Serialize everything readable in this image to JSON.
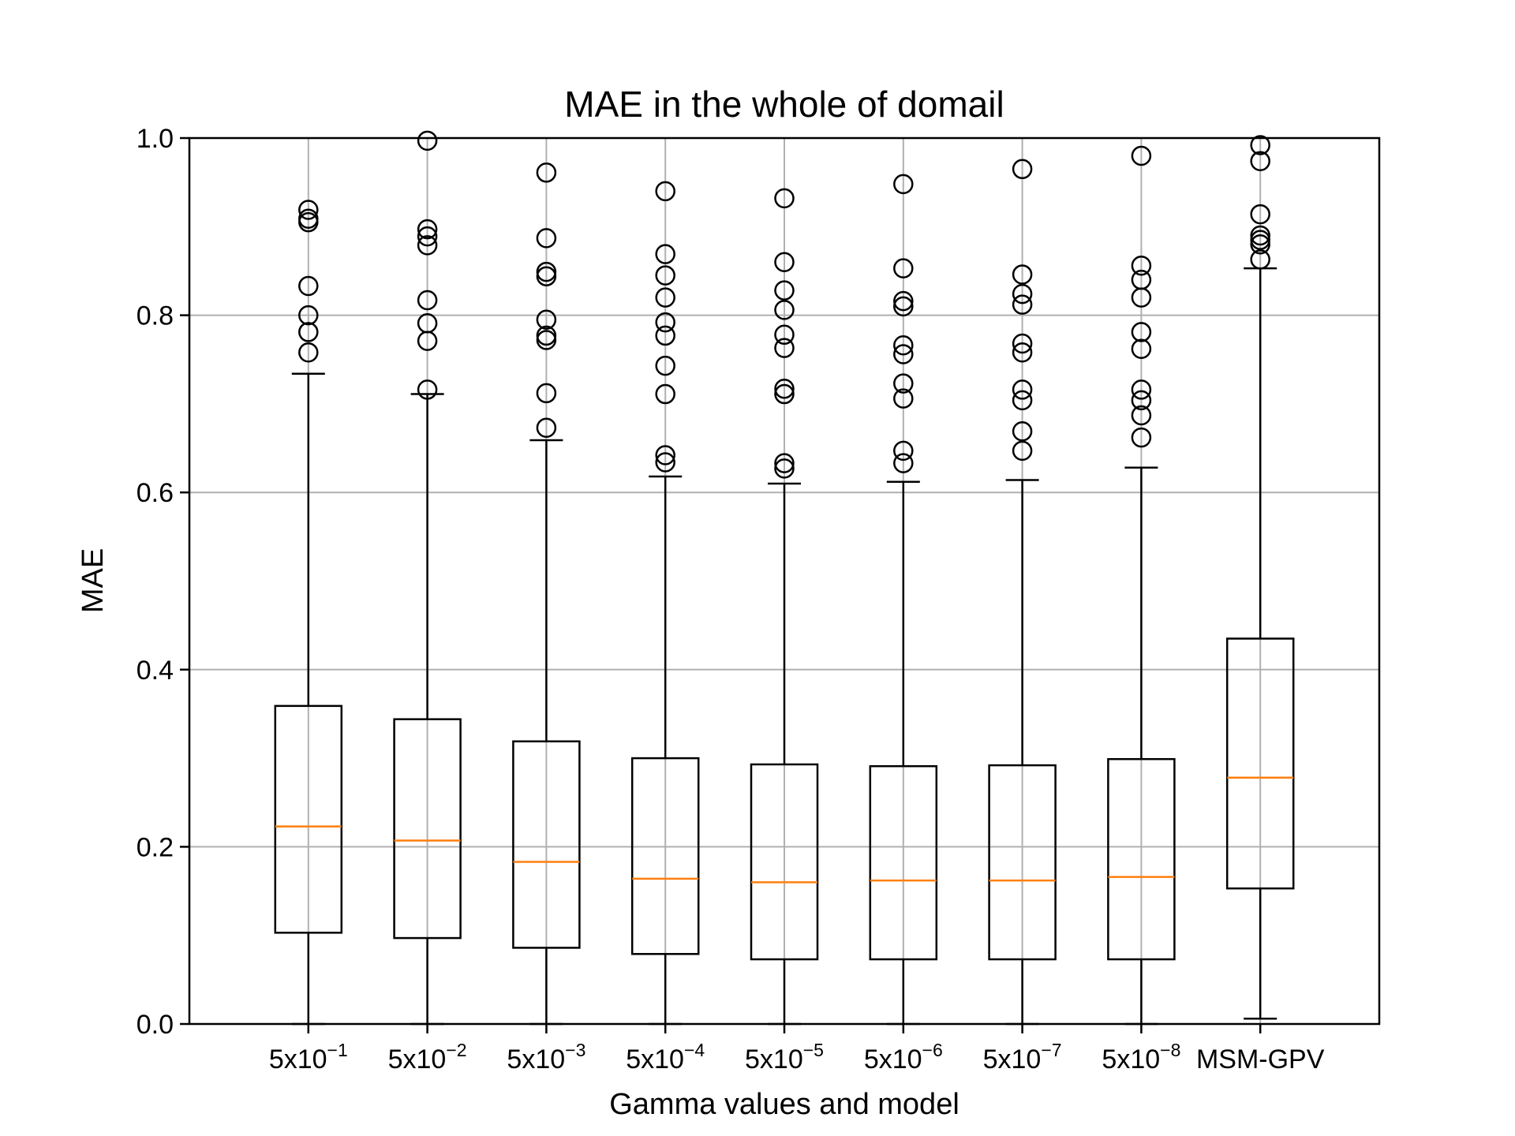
{
  "chart_data": {
    "type": "boxplot",
    "title": "MAE in the whole of domail",
    "xlabel": "Gamma values and model",
    "ylabel": "MAE",
    "ylim": [
      0.0,
      1.0
    ],
    "yticks": [
      "0.0",
      "0.2",
      "0.4",
      "0.6",
      "0.8",
      "1.0"
    ],
    "grid": true,
    "colors": {
      "box": "#000000",
      "median": "#ff7f0e",
      "grid": "#b0b0b0"
    },
    "categories": [
      {
        "base": "5x10",
        "exp": "−1"
      },
      {
        "base": "5x10",
        "exp": "−2"
      },
      {
        "base": "5x10",
        "exp": "−3"
      },
      {
        "base": "5x10",
        "exp": "−4"
      },
      {
        "base": "5x10",
        "exp": "−5"
      },
      {
        "base": "5x10",
        "exp": "−6"
      },
      {
        "base": "5x10",
        "exp": "−7"
      },
      {
        "base": "5x10",
        "exp": "−8"
      },
      {
        "base": "MSM-GPV",
        "exp": ""
      }
    ],
    "boxes": [
      {
        "whisker_low": 0.0,
        "q1": 0.103,
        "median": 0.223,
        "q3": 0.359,
        "whisker_high": 0.734,
        "outliers": [
          0.758,
          0.781,
          0.8,
          0.833,
          0.905,
          0.909,
          0.919
        ]
      },
      {
        "whisker_low": 0.0,
        "q1": 0.097,
        "median": 0.207,
        "q3": 0.344,
        "whisker_high": 0.711,
        "outliers": [
          0.716,
          0.771,
          0.791,
          0.817,
          0.879,
          0.889,
          0.897,
          0.997
        ]
      },
      {
        "whisker_low": 0.0,
        "q1": 0.086,
        "median": 0.183,
        "q3": 0.319,
        "whisker_high": 0.659,
        "outliers": [
          0.673,
          0.712,
          0.772,
          0.777,
          0.795,
          0.844,
          0.849,
          0.887,
          0.961
        ]
      },
      {
        "whisker_low": 0.0,
        "q1": 0.079,
        "median": 0.164,
        "q3": 0.3,
        "whisker_high": 0.618,
        "outliers": [
          0.634,
          0.642,
          0.711,
          0.743,
          0.777,
          0.792,
          0.82,
          0.845,
          0.869,
          0.94
        ]
      },
      {
        "whisker_low": 0.0,
        "q1": 0.073,
        "median": 0.16,
        "q3": 0.293,
        "whisker_high": 0.61,
        "outliers": [
          0.627,
          0.633,
          0.711,
          0.717,
          0.763,
          0.778,
          0.806,
          0.828,
          0.86,
          0.932
        ]
      },
      {
        "whisker_low": 0.0,
        "q1": 0.073,
        "median": 0.162,
        "q3": 0.291,
        "whisker_high": 0.612,
        "outliers": [
          0.633,
          0.647,
          0.706,
          0.723,
          0.756,
          0.766,
          0.81,
          0.816,
          0.853,
          0.948
        ]
      },
      {
        "whisker_low": 0.0,
        "q1": 0.073,
        "median": 0.162,
        "q3": 0.292,
        "whisker_high": 0.614,
        "outliers": [
          0.647,
          0.669,
          0.704,
          0.716,
          0.758,
          0.768,
          0.812,
          0.824,
          0.846,
          0.965
        ]
      },
      {
        "whisker_low": 0.0,
        "q1": 0.073,
        "median": 0.166,
        "q3": 0.299,
        "whisker_high": 0.628,
        "outliers": [
          0.662,
          0.687,
          0.704,
          0.716,
          0.762,
          0.781,
          0.82,
          0.84,
          0.856,
          0.98
        ]
      },
      {
        "whisker_low": 0.006,
        "q1": 0.153,
        "median": 0.278,
        "q3": 0.435,
        "whisker_high": 0.853,
        "outliers": [
          0.863,
          0.88,
          0.885,
          0.89,
          0.914,
          0.974,
          0.992
        ]
      }
    ]
  }
}
